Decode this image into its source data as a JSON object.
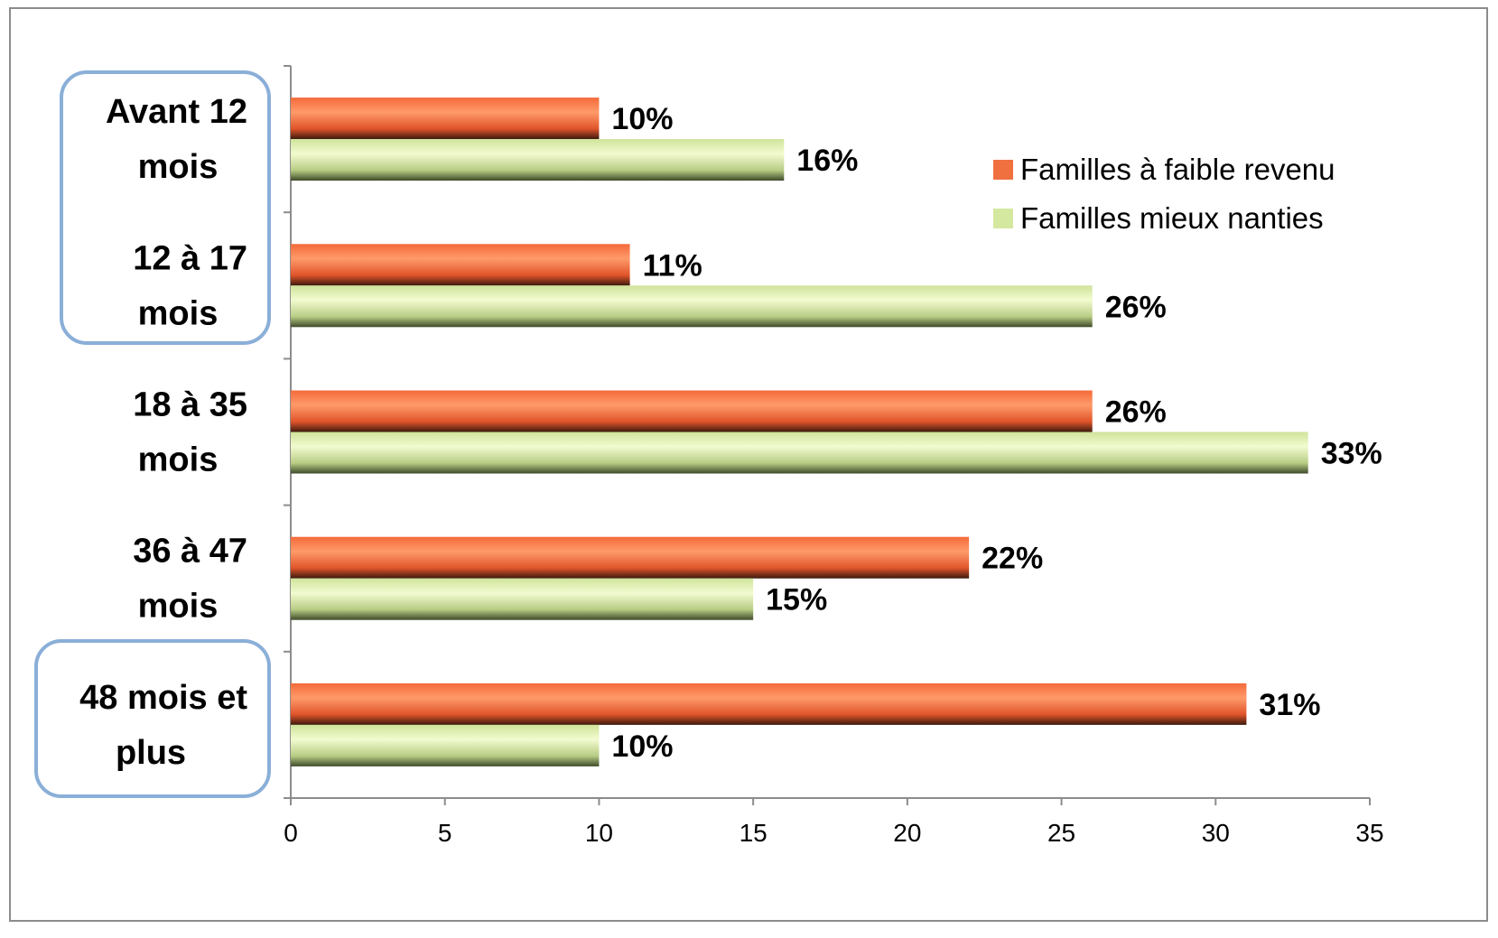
{
  "chart_data": {
    "type": "bar",
    "orientation": "horizontal",
    "categories": [
      [
        "Avant 12",
        "mois"
      ],
      [
        "12 à 17",
        "mois"
      ],
      [
        "18 à 35",
        "mois"
      ],
      [
        "36 à 47",
        "mois"
      ],
      [
        "48 mois et",
        "plus"
      ]
    ],
    "highlighted_categories": [
      0,
      1,
      4
    ],
    "series": [
      {
        "name": "Familles à faible revenu",
        "values": [
          10,
          11,
          26,
          22,
          31
        ],
        "labels": [
          "10%",
          "11%",
          "26%",
          "22%",
          "31%"
        ],
        "color": "#f07040"
      },
      {
        "name": "Familles mieux nanties",
        "values": [
          16,
          26,
          33,
          15,
          10
        ],
        "labels": [
          "16%",
          "26%",
          "33%",
          "15%",
          "10%"
        ],
        "color": "#d4e8a0"
      }
    ],
    "xlim": [
      0,
      35
    ],
    "xticks": [
      "0",
      "5",
      "10",
      "15",
      "20",
      "25",
      "30",
      "35"
    ],
    "legend_position": "top-right",
    "grid": false,
    "highlight_color": "#8aafd8"
  }
}
